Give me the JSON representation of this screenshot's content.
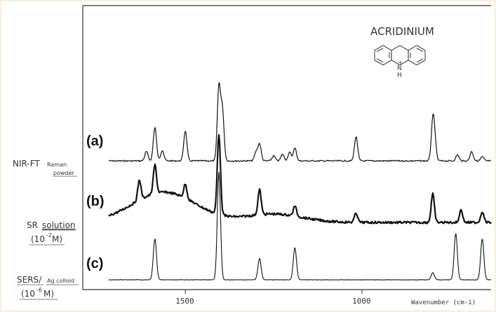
{
  "chart_data": {
    "type": "line",
    "title": "ACRIDINIUM",
    "structure_label": "N",
    "structure_sub": "H",
    "structure_charge": "+",
    "xlabel": "Wavenumber (cm-1)",
    "x_ticks": [
      1500,
      1000
    ],
    "x_tick_labels": [
      "1500",
      "1000"
    ],
    "xlim": [
      1790,
      635
    ],
    "series": [
      {
        "name": "(a)",
        "label_lines": [
          "NIR-FT",
          "Raman",
          "powder"
        ],
        "baseline": 0.0,
        "peaks": [
          [
            1610,
            0.28
          ],
          [
            1586,
            1.0
          ],
          [
            1565,
            0.32
          ],
          [
            1500,
            0.9
          ],
          [
            1405,
            2.2
          ],
          [
            1395,
            1.5
          ],
          [
            1300,
            0.25
          ],
          [
            1290,
            0.5
          ],
          [
            1250,
            0.15
          ],
          [
            1225,
            0.2
          ],
          [
            1205,
            0.25
          ],
          [
            1190,
            0.38
          ],
          [
            1017,
            0.72
          ],
          [
            800,
            1.05
          ],
          [
            795,
            0.55
          ],
          [
            730,
            0.18
          ],
          [
            690,
            0.28
          ],
          [
            660,
            0.12
          ],
          [
            618,
            1.35
          ]
        ]
      },
      {
        "name": "(b)",
        "label_lines": [
          "SR",
          "solution",
          "(10",
          "-2",
          " M)"
        ],
        "baseline": 0.0,
        "peaks": [
          [
            1630,
            0.6
          ],
          [
            1586,
            0.85
          ],
          [
            1500,
            0.42
          ],
          [
            1405,
            2.4
          ],
          [
            1290,
            0.75
          ],
          [
            1190,
            0.3
          ],
          [
            1017,
            0.28
          ],
          [
            800,
            0.85
          ],
          [
            720,
            0.38
          ],
          [
            660,
            0.32
          ],
          [
            618,
            1.05
          ]
        ]
      },
      {
        "name": "(c)",
        "label_lines": [
          "SERS/",
          "Ag colloid",
          "(10",
          "-6",
          "M)"
        ],
        "baseline": 0.0,
        "peaks": [
          [
            1586,
            1.15
          ],
          [
            1405,
            3.0
          ],
          [
            1290,
            0.6
          ],
          [
            1190,
            0.9
          ],
          [
            800,
            0.2
          ],
          [
            735,
            1.3
          ],
          [
            660,
            1.15
          ]
        ]
      }
    ]
  }
}
